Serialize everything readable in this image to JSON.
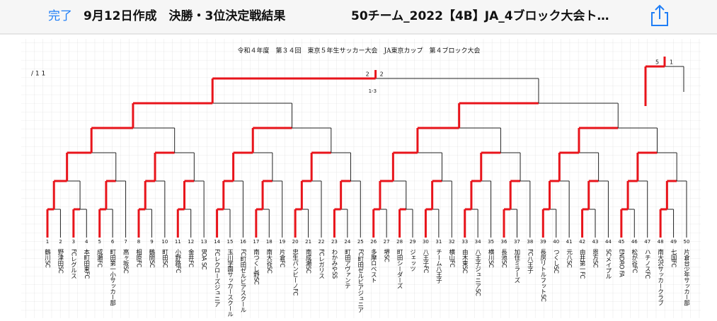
{
  "toolbar": {
    "done": "完了",
    "title_left": "9月12日作成　決勝・3位決定戦結果",
    "title_right": "50チーム_2022【4B】JA_4ブロック大会ト…"
  },
  "document": {
    "title": "令和４年度　第３４回　東京５年生サッカー大会　JA東京カップ　第４ブロック大会",
    "page_mark": "/ 1 1",
    "final": {
      "left_score": "2",
      "right_score": "2",
      "pk": "1-3"
    },
    "third_place": {
      "left_score": "5",
      "right_score": "1"
    },
    "teams": [
      {
        "no": "1",
        "name": "鶴川SC"
      },
      {
        "no": "2",
        "name": "野津田SC"
      },
      {
        "no": "3",
        "name": "FCレグルス"
      },
      {
        "no": "4",
        "name": "本町田東FC"
      },
      {
        "no": "5",
        "name": "成瀬FC"
      },
      {
        "no": "6",
        "name": "町田第一小サッカー部"
      },
      {
        "no": "7",
        "name": "高ヶ坂SC"
      },
      {
        "no": "8",
        "name": "相原FC"
      },
      {
        "no": "9",
        "name": "鶴間SC"
      },
      {
        "no": "10",
        "name": "町田SC"
      },
      {
        "no": "11",
        "name": "小野路FC"
      },
      {
        "no": "12",
        "name": "金井FC"
      },
      {
        "no": "13",
        "name": "BOA SC"
      },
      {
        "no": "14",
        "name": "FCレクローズジュニア"
      },
      {
        "no": "15",
        "name": "玉川学園サッカースクール"
      },
      {
        "no": "16",
        "name": "FC町田ゼルビアスクール"
      },
      {
        "no": "17",
        "name": "南つくし野SC"
      },
      {
        "no": "18",
        "name": "南大谷SC"
      },
      {
        "no": "19",
        "name": "片倉FC"
      },
      {
        "no": "20",
        "name": "忠生バンビーノFC"
      },
      {
        "no": "21",
        "name": "南成瀬SC"
      },
      {
        "no": "22",
        "name": "FCレガリス"
      },
      {
        "no": "23",
        "name": "わかみやSS"
      },
      {
        "no": "24",
        "name": "町田アヴァンテ"
      },
      {
        "no": "25",
        "name": "FC町田ゼルビアジュニア"
      },
      {
        "no": "26",
        "name": "多摩ロベスト"
      },
      {
        "no": "27",
        "name": "堺SC"
      },
      {
        "no": "28",
        "name": "町田シーダーズ"
      },
      {
        "no": "29",
        "name": "ジェッツ"
      },
      {
        "no": "30",
        "name": "八王子FC"
      },
      {
        "no": "31",
        "name": "チーム八王子"
      },
      {
        "no": "32",
        "name": "横山FC"
      },
      {
        "no": "33",
        "name": "由木東SC"
      },
      {
        "no": "34",
        "name": "八王子ジュニアSC"
      },
      {
        "no": "35",
        "name": "横川SC"
      },
      {
        "no": "36",
        "name": "長池SC"
      },
      {
        "no": "37",
        "name": "加住ミラーズ"
      },
      {
        "no": "38",
        "name": "FC八王子"
      },
      {
        "no": "39",
        "name": "長房リトルフットSC"
      },
      {
        "no": "40",
        "name": "つくしSC"
      },
      {
        "no": "41",
        "name": "元八SC"
      },
      {
        "no": "42",
        "name": "由井第一FC"
      },
      {
        "no": "43",
        "name": "恩方SC"
      },
      {
        "no": "44",
        "name": "SCメイプル"
      },
      {
        "no": "45",
        "name": "ENDRO FA"
      },
      {
        "no": "46",
        "name": "松が谷FC"
      },
      {
        "no": "47",
        "name": "ハチノスFC"
      },
      {
        "no": "48",
        "name": "南大沢サッカークラブ"
      },
      {
        "no": "49",
        "name": "七国FC"
      },
      {
        "no": "50",
        "name": "片倉台少年サッカー部"
      }
    ]
  }
}
